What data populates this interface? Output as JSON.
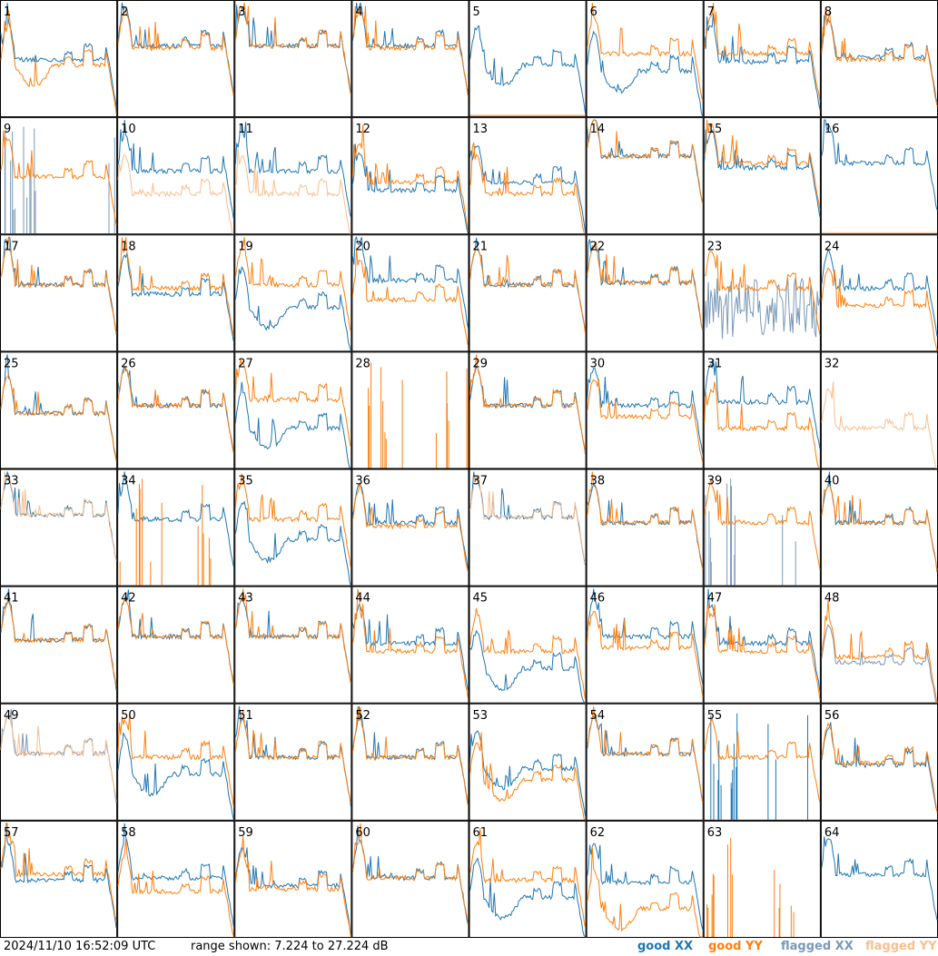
{
  "footer": {
    "timestamp": "2024/11/10 16:52:09 UTC",
    "range_text": "range shown: 7.224 to 27.224 dB"
  },
  "legend": [
    {
      "label": "good XX",
      "color": "#1f77b4"
    },
    {
      "label": "good YY",
      "color": "#ff7f0e"
    },
    {
      "label": "flagged XX",
      "color": "#7a99b8"
    },
    {
      "label": "flagged YY",
      "color": "#f9bf8f"
    }
  ],
  "chart_data": {
    "type": "line",
    "title": "",
    "units": "dB",
    "ylim": [
      7.224,
      27.224
    ],
    "grid": false,
    "layout": "8x8 small multiples",
    "legend_placement": "bottom-right",
    "colors": {
      "good_xx": "#1f77b4",
      "good_yy": "#ff7f0e",
      "flagged_xx": "#7a99b8",
      "flagged_yy": "#f9bf8f"
    },
    "panels": [
      {
        "label": "1",
        "xx": "good",
        "yy": "good",
        "xx_level": 0.5,
        "yy_level": 0.45,
        "xx_shape": "mid",
        "yy_shape": "dip"
      },
      {
        "label": "2",
        "xx": "good",
        "yy": "good",
        "xx_level": 0.62,
        "yy_level": 0.6,
        "xx_shape": "normal",
        "yy_shape": "normal"
      },
      {
        "label": "3",
        "xx": "good",
        "yy": "good",
        "xx_level": 0.62,
        "yy_level": 0.62,
        "xx_shape": "normal",
        "yy_shape": "normal"
      },
      {
        "label": "4",
        "xx": "good",
        "yy": "good",
        "xx_level": 0.62,
        "yy_level": 0.6,
        "xx_shape": "normal",
        "yy_shape": "normal"
      },
      {
        "label": "5",
        "xx": "good",
        "yy": "good",
        "xx_level": 0.45,
        "yy_level": 0.0,
        "xx_shape": "dip",
        "yy_shape": "zero"
      },
      {
        "label": "6",
        "xx": "good",
        "yy": "good",
        "xx_level": 0.4,
        "yy_level": 0.55,
        "xx_shape": "dip",
        "yy_shape": "normal"
      },
      {
        "label": "7",
        "xx": "good",
        "yy": "good",
        "xx_level": 0.48,
        "yy_level": 0.55,
        "xx_shape": "normal",
        "yy_shape": "normal"
      },
      {
        "label": "8",
        "xx": "good",
        "yy": "good",
        "xx_level": 0.52,
        "yy_level": 0.5,
        "xx_shape": "normal",
        "yy_shape": "normal"
      },
      {
        "label": "9",
        "xx": "flagged",
        "yy": "good",
        "xx_level": 0.0,
        "yy_level": 0.5,
        "xx_shape": "spikes",
        "yy_shape": "normal"
      },
      {
        "label": "10",
        "xx": "good",
        "yy": "flagged",
        "xx_level": 0.55,
        "yy_level": 0.35,
        "xx_shape": "normal",
        "yy_shape": "normal"
      },
      {
        "label": "11",
        "xx": "good",
        "yy": "flagged",
        "xx_level": 0.55,
        "yy_level": 0.35,
        "xx_shape": "normal",
        "yy_shape": "normal"
      },
      {
        "label": "12",
        "xx": "good",
        "yy": "good",
        "xx_level": 0.38,
        "yy_level": 0.45,
        "xx_shape": "normal",
        "yy_shape": "normal"
      },
      {
        "label": "13",
        "xx": "good",
        "yy": "good",
        "xx_level": 0.45,
        "yy_level": 0.35,
        "xx_shape": "normal",
        "yy_shape": "normal"
      },
      {
        "label": "14",
        "xx": "good",
        "yy": "good",
        "xx_level": 0.68,
        "yy_level": 0.68,
        "xx_shape": "normal",
        "yy_shape": "normal"
      },
      {
        "label": "15",
        "xx": "good",
        "yy": "good",
        "xx_level": 0.58,
        "yy_level": 0.62,
        "xx_shape": "normal",
        "yy_shape": "normal"
      },
      {
        "label": "16",
        "xx": "good",
        "yy": "flagged",
        "xx_level": 0.62,
        "yy_level": 0.0,
        "xx_shape": "normal",
        "yy_shape": "zero"
      },
      {
        "label": "17",
        "xx": "good",
        "yy": "good",
        "xx_level": 0.58,
        "yy_level": 0.58,
        "xx_shape": "normal",
        "yy_shape": "normal"
      },
      {
        "label": "18",
        "xx": "good",
        "yy": "good",
        "xx_level": 0.5,
        "yy_level": 0.55,
        "xx_shape": "normal",
        "yy_shape": "normal"
      },
      {
        "label": "19",
        "xx": "good",
        "yy": "good",
        "xx_level": 0.38,
        "yy_level": 0.58,
        "xx_shape": "dip",
        "yy_shape": "normal"
      },
      {
        "label": "20",
        "xx": "good",
        "yy": "good",
        "xx_level": 0.62,
        "yy_level": 0.45,
        "xx_shape": "normal",
        "yy_shape": "normal"
      },
      {
        "label": "21",
        "xx": "good",
        "yy": "good",
        "xx_level": 0.58,
        "yy_level": 0.58,
        "xx_shape": "normal",
        "yy_shape": "normal"
      },
      {
        "label": "22",
        "xx": "good",
        "yy": "good",
        "xx_level": 0.6,
        "yy_level": 0.6,
        "xx_shape": "normal",
        "yy_shape": "normal"
      },
      {
        "label": "23",
        "xx": "flagged",
        "yy": "good",
        "xx_level": 0.25,
        "yy_level": 0.55,
        "xx_shape": "noisy",
        "yy_shape": "normal"
      },
      {
        "label": "24",
        "xx": "good",
        "yy": "good",
        "xx_level": 0.55,
        "yy_level": 0.4,
        "xx_shape": "normal",
        "yy_shape": "normal"
      },
      {
        "label": "25",
        "xx": "good",
        "yy": "good",
        "xx_level": 0.48,
        "yy_level": 0.48,
        "xx_shape": "normal",
        "yy_shape": "normal"
      },
      {
        "label": "26",
        "xx": "good",
        "yy": "good",
        "xx_level": 0.55,
        "yy_level": 0.55,
        "xx_shape": "normal",
        "yy_shape": "normal"
      },
      {
        "label": "27",
        "xx": "good",
        "yy": "good",
        "xx_level": 0.35,
        "yy_level": 0.6,
        "xx_shape": "dip",
        "yy_shape": "normal"
      },
      {
        "label": "28",
        "xx": "none",
        "yy": "good",
        "xx_level": 0.0,
        "yy_level": 0.0,
        "xx_shape": "none",
        "yy_shape": "spikes"
      },
      {
        "label": "29",
        "xx": "good",
        "yy": "good",
        "xx_level": 0.55,
        "yy_level": 0.55,
        "xx_shape": "normal",
        "yy_shape": "normal"
      },
      {
        "label": "30",
        "xx": "good",
        "yy": "good",
        "xx_level": 0.55,
        "yy_level": 0.45,
        "xx_shape": "normal",
        "yy_shape": "normal"
      },
      {
        "label": "31",
        "xx": "good",
        "yy": "good",
        "xx_level": 0.58,
        "yy_level": 0.35,
        "xx_shape": "normal",
        "yy_shape": "normal"
      },
      {
        "label": "32",
        "xx": "none",
        "yy": "flagged",
        "xx_level": 0.0,
        "yy_level": 0.35,
        "xx_shape": "none",
        "yy_shape": "normal"
      },
      {
        "label": "33",
        "xx": "good",
        "yy": "flagged",
        "xx_level": 0.62,
        "yy_level": 0.62,
        "xx_shape": "normal",
        "yy_shape": "normal"
      },
      {
        "label": "34",
        "xx": "good",
        "yy": "good",
        "xx_level": 0.58,
        "yy_level": 0.0,
        "xx_shape": "normal",
        "yy_shape": "spikes"
      },
      {
        "label": "35",
        "xx": "good",
        "yy": "good",
        "xx_level": 0.4,
        "yy_level": 0.58,
        "xx_shape": "dip",
        "yy_shape": "normal"
      },
      {
        "label": "36",
        "xx": "good",
        "yy": "good",
        "xx_level": 0.55,
        "yy_level": 0.52,
        "xx_shape": "normal",
        "yy_shape": "normal"
      },
      {
        "label": "37",
        "xx": "good",
        "yy": "flagged",
        "xx_level": 0.6,
        "yy_level": 0.6,
        "xx_shape": "normal",
        "yy_shape": "normal"
      },
      {
        "label": "38",
        "xx": "good",
        "yy": "good",
        "xx_level": 0.55,
        "yy_level": 0.55,
        "xx_shape": "normal",
        "yy_shape": "normal"
      },
      {
        "label": "39",
        "xx": "flagged",
        "yy": "good",
        "xx_level": 0.0,
        "yy_level": 0.55,
        "xx_shape": "spikes",
        "yy_shape": "normal"
      },
      {
        "label": "40",
        "xx": "good",
        "yy": "good",
        "xx_level": 0.55,
        "yy_level": 0.55,
        "xx_shape": "normal",
        "yy_shape": "normal"
      },
      {
        "label": "41",
        "xx": "good",
        "yy": "good",
        "xx_level": 0.55,
        "yy_level": 0.55,
        "xx_shape": "normal",
        "yy_shape": "normal"
      },
      {
        "label": "42",
        "xx": "good",
        "yy": "good",
        "xx_level": 0.58,
        "yy_level": 0.58,
        "xx_shape": "normal",
        "yy_shape": "normal"
      },
      {
        "label": "43",
        "xx": "good",
        "yy": "good",
        "xx_level": 0.58,
        "yy_level": 0.58,
        "xx_shape": "normal",
        "yy_shape": "normal"
      },
      {
        "label": "44",
        "xx": "good",
        "yy": "good",
        "xx_level": 0.52,
        "yy_level": 0.45,
        "xx_shape": "normal",
        "yy_shape": "normal"
      },
      {
        "label": "45",
        "xx": "good",
        "yy": "good",
        "xx_level": 0.3,
        "yy_level": 0.45,
        "xx_shape": "dip",
        "yy_shape": "normal"
      },
      {
        "label": "46",
        "xx": "good",
        "yy": "good",
        "xx_level": 0.58,
        "yy_level": 0.48,
        "xx_shape": "normal",
        "yy_shape": "normal"
      },
      {
        "label": "47",
        "xx": "good",
        "yy": "good",
        "xx_level": 0.52,
        "yy_level": 0.45,
        "xx_shape": "normal",
        "yy_shape": "normal"
      },
      {
        "label": "48",
        "xx": "flagged",
        "yy": "good",
        "xx_level": 0.35,
        "yy_level": 0.4,
        "xx_shape": "normal",
        "yy_shape": "normal"
      },
      {
        "label": "49",
        "xx": "flagged",
        "yy": "flagged",
        "xx_level": 0.58,
        "yy_level": 0.58,
        "xx_shape": "normal",
        "yy_shape": "normal"
      },
      {
        "label": "50",
        "xx": "good",
        "yy": "good",
        "xx_level": 0.4,
        "yy_level": 0.55,
        "xx_shape": "dip",
        "yy_shape": "normal"
      },
      {
        "label": "51",
        "xx": "good",
        "yy": "good",
        "xx_level": 0.55,
        "yy_level": 0.55,
        "xx_shape": "normal",
        "yy_shape": "normal"
      },
      {
        "label": "52",
        "xx": "good",
        "yy": "good",
        "xx_level": 0.55,
        "yy_level": 0.55,
        "xx_shape": "normal",
        "yy_shape": "normal"
      },
      {
        "label": "53",
        "xx": "good",
        "yy": "good",
        "xx_level": 0.45,
        "yy_level": 0.35,
        "xx_shape": "dip",
        "yy_shape": "dip"
      },
      {
        "label": "54",
        "xx": "good",
        "yy": "good",
        "xx_level": 0.58,
        "yy_level": 0.58,
        "xx_shape": "normal",
        "yy_shape": "normal"
      },
      {
        "label": "55",
        "xx": "good",
        "yy": "good",
        "xx_level": 0.0,
        "yy_level": 0.55,
        "xx_shape": "spikes",
        "yy_shape": "normal"
      },
      {
        "label": "56",
        "xx": "good",
        "yy": "good",
        "xx_level": 0.48,
        "yy_level": 0.5,
        "xx_shape": "normal",
        "yy_shape": "normal"
      },
      {
        "label": "57",
        "xx": "good",
        "yy": "good",
        "xx_level": 0.5,
        "yy_level": 0.55,
        "xx_shape": "normal",
        "yy_shape": "normal"
      },
      {
        "label": "58",
        "xx": "good",
        "yy": "good",
        "xx_level": 0.52,
        "yy_level": 0.4,
        "xx_shape": "normal",
        "yy_shape": "normal"
      },
      {
        "label": "59",
        "xx": "good",
        "yy": "good",
        "xx_level": 0.45,
        "yy_level": 0.42,
        "xx_shape": "normal",
        "yy_shape": "normal"
      },
      {
        "label": "60",
        "xx": "good",
        "yy": "good",
        "xx_level": 0.52,
        "yy_level": 0.52,
        "xx_shape": "normal",
        "yy_shape": "normal"
      },
      {
        "label": "61",
        "xx": "good",
        "yy": "good",
        "xx_level": 0.35,
        "yy_level": 0.5,
        "xx_shape": "dip",
        "yy_shape": "normal"
      },
      {
        "label": "62",
        "xx": "good",
        "yy": "good",
        "xx_level": 0.48,
        "yy_level": 0.25,
        "xx_shape": "normal",
        "yy_shape": "dip"
      },
      {
        "label": "63",
        "xx": "none",
        "yy": "good",
        "xx_level": 0.0,
        "yy_level": 0.0,
        "xx_shape": "none",
        "yy_shape": "spikes"
      },
      {
        "label": "64",
        "xx": "good",
        "yy": "none",
        "xx_level": 0.55,
        "yy_level": 0.0,
        "xx_shape": "normal",
        "yy_shape": "none"
      }
    ]
  }
}
